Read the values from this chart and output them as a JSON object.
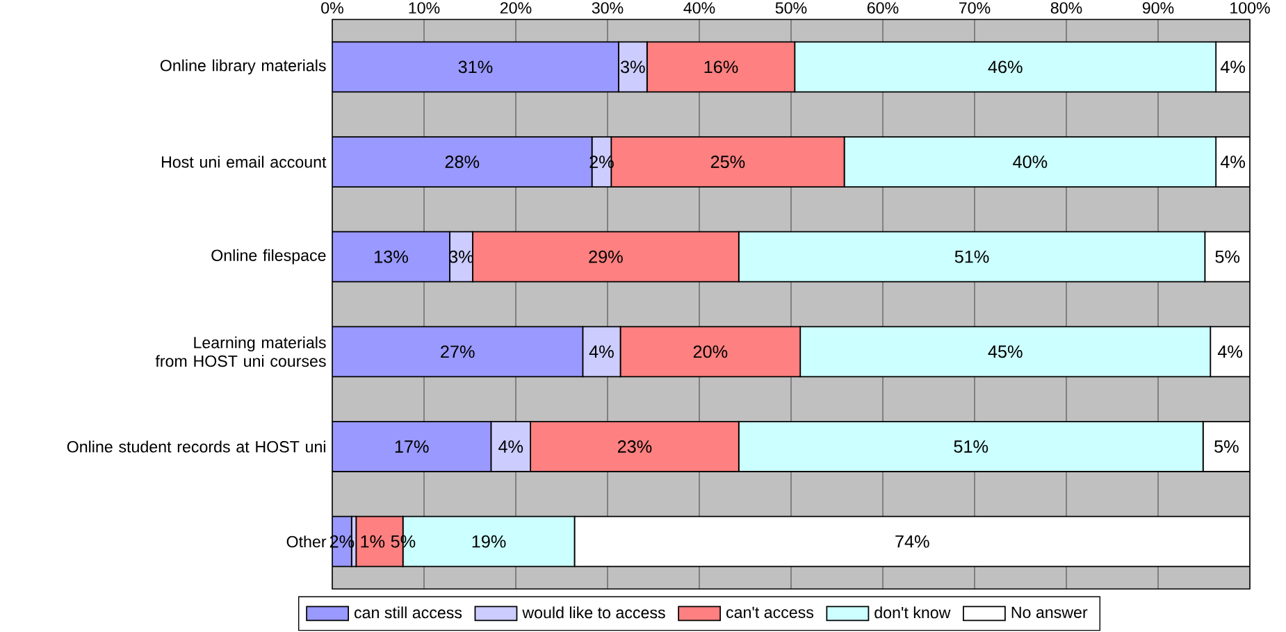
{
  "chart_data": {
    "type": "bar",
    "orientation": "horizontal",
    "stacked": true,
    "categories": [
      "Online library materials",
      "Host uni email account",
      "Online filespace",
      "Learning materials from HOST uni courses",
      "Online student records at HOST uni",
      "Other"
    ],
    "series": [
      {
        "name": "can still access",
        "color": "#9999ff",
        "values": [
          31.2,
          28.3,
          12.8,
          27.3,
          17.3,
          2.1
        ],
        "value_labels": [
          "31%",
          "28%",
          "13%",
          "27%",
          "17%",
          "2%"
        ]
      },
      {
        "name": "would like to access",
        "color": "#ccccff",
        "values": [
          3.1,
          2.1,
          2.5,
          4.1,
          4.3,
          0.5
        ],
        "value_labels": [
          "3%",
          "2%",
          "3%",
          "4%",
          "4%",
          "1%"
        ]
      },
      {
        "name": "can't access",
        "color": "#ff8080",
        "values": [
          16.1,
          25.4,
          29.0,
          19.6,
          22.7,
          5.1
        ],
        "value_labels": [
          "16%",
          "25%",
          "29%",
          "20%",
          "23%",
          "5%"
        ]
      },
      {
        "name": "don't know",
        "color": "#ccffff",
        "values": [
          45.9,
          40.5,
          50.8,
          44.7,
          50.6,
          18.7
        ],
        "value_labels": [
          "46%",
          "40%",
          "51%",
          "45%",
          "51%",
          "19%"
        ]
      },
      {
        "name": "No answer",
        "color": "#ffffff",
        "values": [
          3.7,
          3.7,
          4.9,
          4.3,
          5.1,
          73.6
        ],
        "value_labels": [
          "4%",
          "4%",
          "5%",
          "4%",
          "5%",
          "74%"
        ]
      }
    ],
    "xlim": [
      0,
      100
    ],
    "xticks": [
      {
        "value": 0,
        "label": "0%"
      },
      {
        "value": 10,
        "label": "10%"
      },
      {
        "value": 20,
        "label": "20%"
      },
      {
        "value": 30,
        "label": "30%"
      },
      {
        "value": 40,
        "label": "40%"
      },
      {
        "value": 50,
        "label": "50%"
      },
      {
        "value": 60,
        "label": "60%"
      },
      {
        "value": 70,
        "label": "70%"
      },
      {
        "value": 80,
        "label": "80%"
      },
      {
        "value": 90,
        "label": "90%"
      },
      {
        "value": 100,
        "label": "100%"
      }
    ],
    "grid": "x",
    "legend": "bottom"
  }
}
